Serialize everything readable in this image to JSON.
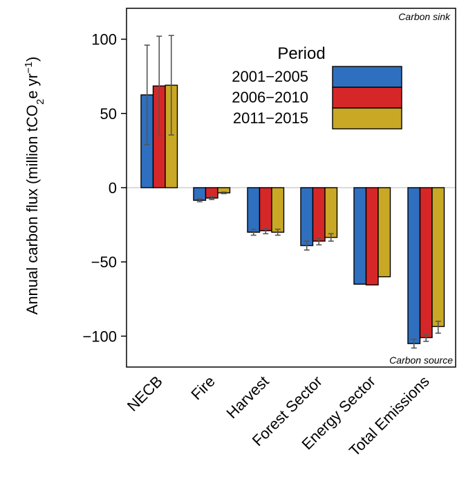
{
  "chart_data": {
    "type": "bar",
    "ylabel": "Annual carbon flux (million tCO",
    "ylabel_sub": "2",
    "ylabel_mid": "e yr",
    "ylabel_sup": "−1",
    "ylabel_end": ")",
    "ylim": [
      -110,
      120
    ],
    "yticks": [
      -100,
      -50,
      0,
      50,
      100
    ],
    "ytick_labels": [
      "−100",
      "−50",
      "0",
      "50",
      "100"
    ],
    "categories": [
      "NECB",
      "Fire",
      "Harvest",
      "Forest Sector",
      "Energy Sector",
      "Total Emissions"
    ],
    "legend_title": "Period",
    "legend_position": "top-right",
    "series": [
      {
        "name": "2001−2005",
        "color": "#2F6FBF",
        "values": [
          62.5,
          -8.5,
          -30,
          -39,
          -65,
          -105
        ],
        "err_low": [
          29,
          -9.5,
          -32,
          -42,
          -65,
          -108
        ],
        "err_high": [
          96,
          -7.5,
          -28,
          -36,
          -65,
          -102
        ]
      },
      {
        "name": "2006−2010",
        "color": "#D62728",
        "values": [
          68.5,
          -7,
          -29,
          -36,
          -65.5,
          -101
        ],
        "err_low": [
          35,
          -8,
          -31,
          -38.5,
          -65.5,
          -103.5
        ],
        "err_high": [
          102,
          -6,
          -27.5,
          -34,
          -65.5,
          -99
        ]
      },
      {
        "name": "2011−2015",
        "color": "#C9A825",
        "values": [
          69,
          -3.5,
          -30,
          -33.5,
          -60,
          -93.5
        ],
        "err_low": [
          35.5,
          -4,
          -32,
          -36,
          -60,
          -98
        ],
        "err_high": [
          102.5,
          -3,
          -28,
          -31,
          -60,
          -90
        ]
      }
    ],
    "annotations": {
      "top_right": "Carbon sink",
      "bottom_right": "Carbon source"
    },
    "zero_line": true,
    "grid": false
  }
}
